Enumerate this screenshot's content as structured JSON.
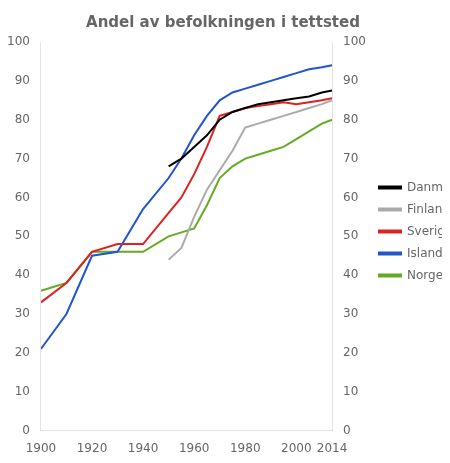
{
  "chart_data": {
    "type": "line",
    "title": "Andel av befolkningen i tettsted",
    "series": [
      {
        "name": "Danmark",
        "color": "#000000",
        "x": [
          1950,
          1955,
          1960,
          1965,
          1970,
          1975,
          1980,
          1985,
          1990,
          1995,
          2000,
          2005,
          2010,
          2014
        ],
        "values": [
          68,
          70,
          73,
          76,
          80,
          82,
          83,
          84,
          84.5,
          85,
          85.5,
          86,
          87,
          87.5
        ]
      },
      {
        "name": "Finland",
        "color": "#aaaaaa",
        "x": [
          1950,
          1955,
          1960,
          1965,
          1970,
          1975,
          1980,
          1985,
          1990,
          1995,
          2000,
          2005,
          2010,
          2014
        ],
        "values": [
          44,
          47,
          55,
          62,
          67,
          72,
          78,
          79,
          80,
          81,
          82,
          83,
          84,
          85
        ]
      },
      {
        "name": "Sverige",
        "color": "#dd2222",
        "x": [
          1900,
          1910,
          1920,
          1930,
          1940,
          1950,
          1955,
          1960,
          1965,
          1970,
          1975,
          1980,
          1985,
          1990,
          1995,
          2000,
          2005,
          2010,
          2014
        ],
        "values": [
          33,
          38,
          46,
          48,
          48,
          56,
          60,
          66,
          73,
          81,
          82,
          83,
          83.5,
          84,
          84.5,
          84,
          84.5,
          85,
          85.5
        ]
      },
      {
        "name": "Island",
        "color": "#2255cc",
        "x": [
          1900,
          1910,
          1920,
          1930,
          1940,
          1950,
          1955,
          1960,
          1965,
          1970,
          1975,
          1980,
          1985,
          1990,
          1995,
          2000,
          2005,
          2010,
          2014
        ],
        "values": [
          21,
          30,
          45,
          46,
          57,
          65,
          70,
          76,
          81,
          85,
          87,
          88,
          89,
          90,
          91,
          92,
          93,
          93.5,
          94
        ]
      },
      {
        "name": "Norge",
        "color": "#66aa22",
        "x": [
          1900,
          1910,
          1920,
          1930,
          1940,
          1950,
          1955,
          1960,
          1965,
          1970,
          1975,
          1980,
          1985,
          1990,
          1995,
          2000,
          2005,
          2010,
          2014
        ],
        "values": [
          36,
          38,
          46,
          46,
          46,
          50,
          51,
          52,
          58,
          65,
          68,
          70,
          71,
          72,
          73,
          75,
          77,
          79,
          80
        ]
      }
    ],
    "xlim": [
      1900,
      2014
    ],
    "xticks": [
      1900,
      1920,
      1940,
      1960,
      1980,
      2000,
      2014
    ],
    "ylim": [
      0,
      100
    ],
    "yticks": [
      0,
      10,
      20,
      30,
      40,
      50,
      60,
      70,
      80,
      90,
      100
    ],
    "y2lim": [
      0,
      100
    ],
    "y2ticks": [
      0,
      10,
      20,
      30,
      40,
      50,
      60,
      70,
      80,
      90,
      100
    ],
    "grid": false,
    "legend": "right"
  }
}
